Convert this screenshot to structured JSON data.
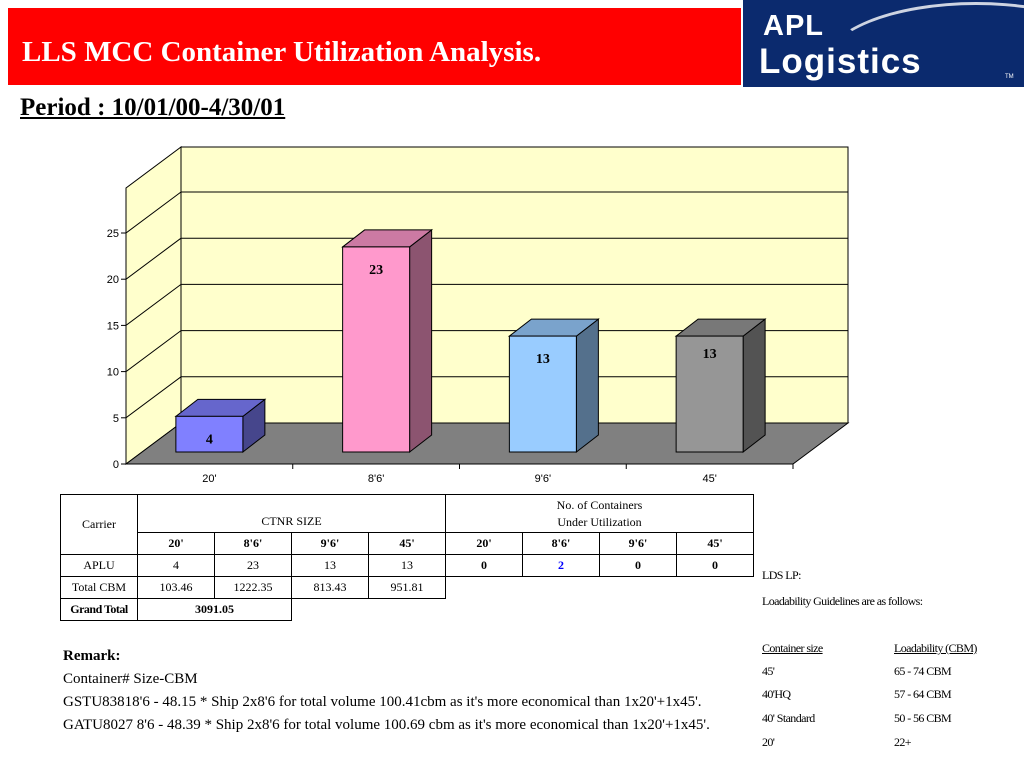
{
  "header": {
    "title": "LLS MCC Container Utilization Analysis.",
    "period": "Period : 10/01/00-4/30/01"
  },
  "logo": {
    "line1": "APL",
    "line2": "Logistics",
    "tm": "TM"
  },
  "chart_data": {
    "type": "bar",
    "categories": [
      "20'",
      "8'6'",
      "9'6'",
      "45'"
    ],
    "values": [
      4,
      23,
      13,
      13
    ],
    "data_labels": [
      "4",
      "23",
      "13",
      "13"
    ],
    "ylim": [
      0,
      25
    ],
    "yticks": [
      0,
      5,
      10,
      15,
      20,
      25
    ],
    "grid": true,
    "three_d": true,
    "colors": [
      "#8080ff",
      "#ff99cc",
      "#99ccff",
      "#969696"
    ],
    "wall_color": "#ffffcc",
    "floor_color": "#808080"
  },
  "table": {
    "carrier_header": "Carrier",
    "ctnr_header": "CTNR SIZE",
    "under_header_1": "No. of Containers",
    "under_header_2": "Under Utilization",
    "sizes": [
      "20'",
      "8'6'",
      "9'6'",
      "45'"
    ],
    "aplu_label": "APLU",
    "aplu_counts": [
      "4",
      "23",
      "13",
      "13"
    ],
    "aplu_under": [
      "0",
      "2",
      "0",
      "0"
    ],
    "cbm_label": "Total CBM",
    "cbm_values": [
      "103.46",
      "1222.35",
      "813.43",
      "951.81"
    ],
    "grand_label": "Grand Total",
    "grand_value": "3091.05"
  },
  "remarks": {
    "title": "Remark:",
    "line1": "Container# Size-CBM",
    "line2": "GSTU83818'6 - 48.15 * Ship 2x8'6 for total volume 100.41cbm as it's more economical than 1x20'+1x45'.",
    "line3": "GATU8027 8'6 - 48.39 * Ship 2x8'6 for total volume 100.69 cbm as it's more economical than 1x20'+1x45'."
  },
  "lds": {
    "title": "LDS LP:",
    "subtitle": "Loadability Guidelines are as follows:",
    "col1_header": "Container size",
    "col2_header": "Loadability (CBM)",
    "rows": [
      {
        "size": "45'",
        "load": "65 - 74 CBM"
      },
      {
        "size": "40'HQ",
        "load": "57 - 64 CBM"
      },
      {
        "size": "40' Standard",
        "load": "50 - 56 CBM"
      },
      {
        "size": "20'",
        "load": "22+"
      }
    ]
  }
}
